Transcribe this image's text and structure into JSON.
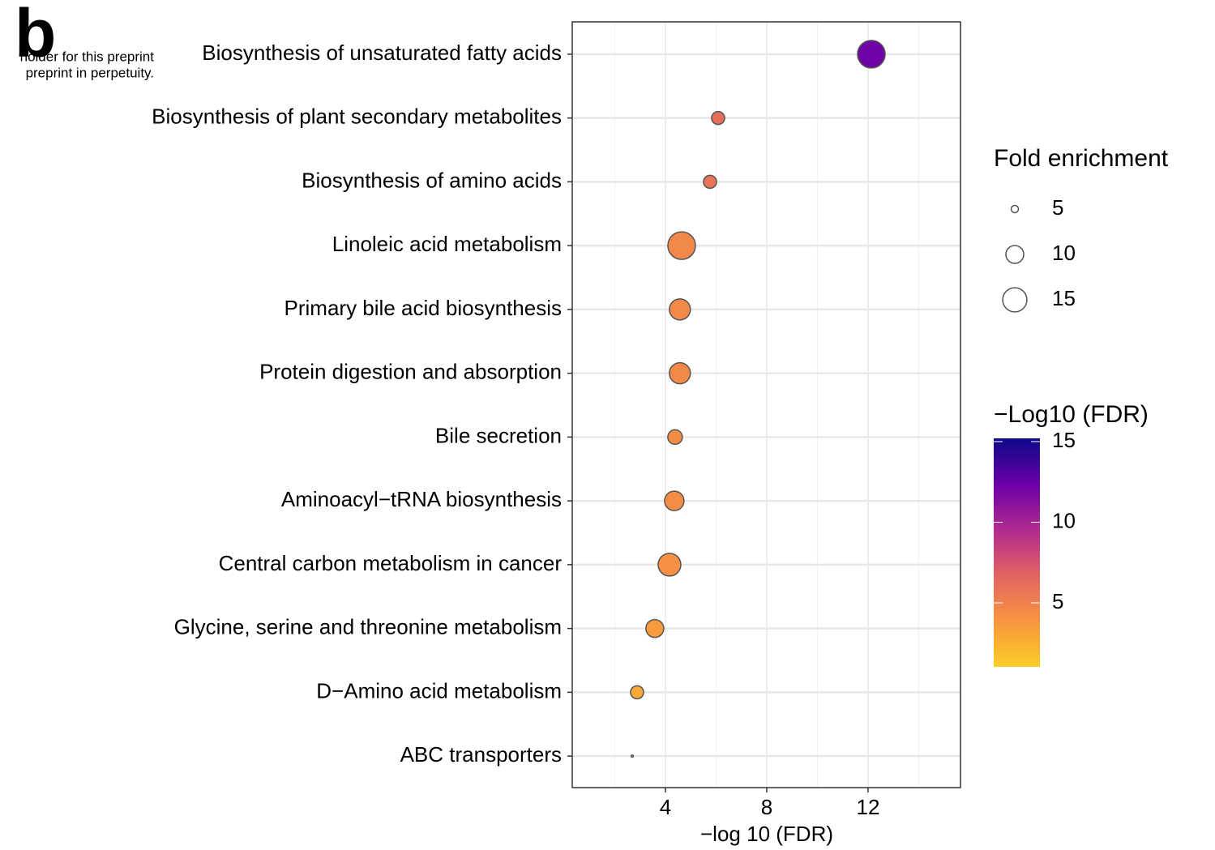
{
  "chart_data": {
    "type": "bubble",
    "panel_label": "b",
    "annotations": [
      "holder for this preprint",
      "preprint in perpetuity."
    ],
    "x_label": "−log 10 (FDR)",
    "categories": [
      "Biosynthesis of unsaturated fatty acids",
      "Biosynthesis of plant secondary metabolites",
      "Biosynthesis of amino acids",
      "Linoleic acid metabolism",
      "Primary bile acid biosynthesis",
      "Protein digestion and absorption",
      "Bile secretion",
      "Aminoacyl−tRNA biosynthesis",
      "Central carbon metabolism in cancer",
      "Glycine, serine and threonine metabolism",
      "D−Amino acid metabolism",
      "ABC transporters"
    ],
    "x": [
      12.13,
      6.08,
      5.76,
      4.64,
      4.57,
      4.57,
      4.38,
      4.35,
      4.16,
      3.58,
      2.88,
      2.69
    ],
    "sizes": [
      18.3,
      7.2,
      7.2,
      18.3,
      12.3,
      12.3,
      8,
      11.1,
      13.7,
      10,
      7.2,
      4.1
    ],
    "xlim": [
      0.32,
      15.65
    ],
    "xticks": [
      4,
      8,
      12
    ],
    "xminorticks": [
      2,
      6,
      10,
      14
    ],
    "grid": true,
    "size_legend_title": "Fold enrichment",
    "size_legend": [
      5,
      10,
      15
    ],
    "color_legend_title": "−Log10 (FDR)",
    "colorlim": [
      1.03,
      15.2
    ],
    "colorticks": [
      5,
      10,
      15
    ],
    "colormap": [
      "#fcce25",
      "#f89540",
      "#e16462",
      "#b12a90",
      "#6a00a8",
      "#0d0887"
    ]
  }
}
